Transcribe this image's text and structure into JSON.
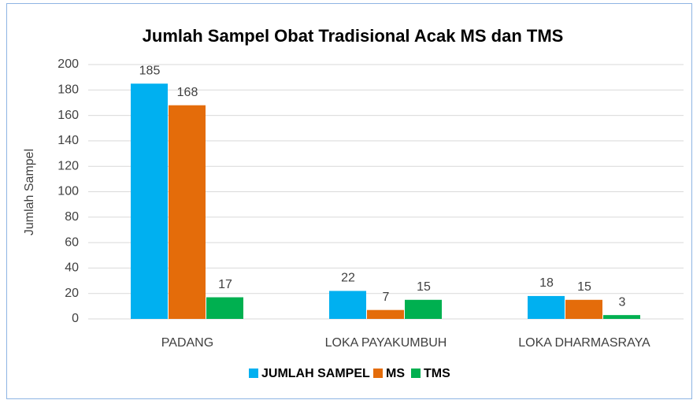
{
  "chart_data": {
    "type": "bar",
    "title": "Jumlah Sampel Obat Tradisional  Acak MS dan TMS",
    "y_label": "Jumlah Sampel",
    "categories": [
      "PADANG",
      "LOKA PAYAKUMBUH",
      "LOKA DHARMASRAYA"
    ],
    "series": [
      {
        "name": "JUMLAH SAMPEL",
        "color": "#00b0f0",
        "values": [
          185,
          22,
          18
        ]
      },
      {
        "name": "MS",
        "color": "#e46c0a",
        "values": [
          168,
          7,
          15
        ]
      },
      {
        "name": "TMS",
        "color": "#00b050",
        "values": [
          17,
          15,
          3
        ]
      }
    ],
    "ylim": [
      0,
      200
    ],
    "yticks": [
      0,
      20,
      40,
      60,
      80,
      100,
      120,
      140,
      160,
      180,
      200
    ],
    "grid": true,
    "legend": "bottom"
  }
}
